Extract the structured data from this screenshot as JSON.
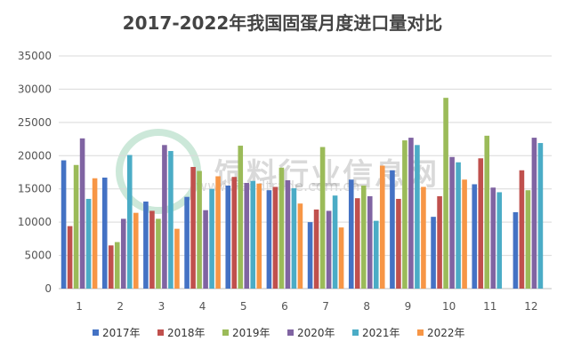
{
  "chart_data": {
    "type": "bar",
    "title": "2017-2022年我国固蛋月度进口量对比",
    "categories": [
      "1",
      "2",
      "3",
      "4",
      "5",
      "6",
      "7",
      "8",
      "9",
      "10",
      "11",
      "12"
    ],
    "ylim": [
      0,
      35000
    ],
    "yticks": [
      0,
      5000,
      10000,
      15000,
      20000,
      25000,
      30000,
      35000
    ],
    "grid": true,
    "legend_position": "bottom",
    "series": [
      {
        "name": "2017年",
        "color": "#4472C4",
        "values": [
          19300,
          16700,
          13100,
          13800,
          15500,
          14800,
          10000,
          16400,
          17800,
          10800,
          15700,
          11500
        ]
      },
      {
        "name": "2018年",
        "color": "#C0504D",
        "values": [
          9400,
          6500,
          11700,
          18300,
          16800,
          15300,
          11900,
          13600,
          13500,
          13900,
          19600,
          17800
        ]
      },
      {
        "name": "2019年",
        "color": "#9BBB59",
        "values": [
          18600,
          7000,
          10500,
          17700,
          21500,
          18200,
          21300,
          15500,
          22300,
          28700,
          23000,
          14800
        ]
      },
      {
        "name": "2020年",
        "color": "#8064A2",
        "values": [
          22600,
          10500,
          21600,
          11800,
          15900,
          16300,
          11700,
          13900,
          22700,
          19800,
          15200,
          22700
        ]
      },
      {
        "name": "2021年",
        "color": "#4BACC6",
        "values": [
          13500,
          20100,
          20700,
          15000,
          16200,
          15100,
          14000,
          10200,
          21600,
          19000,
          14500,
          21900
        ]
      },
      {
        "name": "2022年",
        "color": "#F79646",
        "values": [
          16600,
          11400,
          9000,
          16900,
          15800,
          12800,
          9200,
          18500,
          15300,
          16400,
          null,
          null
        ]
      }
    ]
  },
  "watermark": {
    "text": "饲料行业信息网",
    "url": "www.feedtrade.com.cn"
  }
}
